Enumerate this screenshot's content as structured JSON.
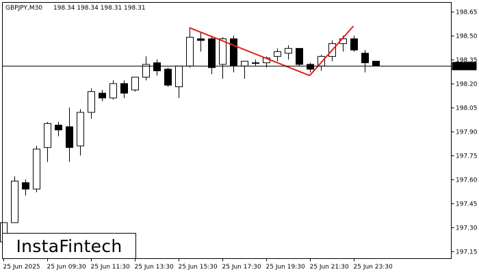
{
  "header": {
    "symbol_label": "GBPJPY,M30",
    "ohlc_label": "198.34 198.34 198.31 198.31"
  },
  "logo": {
    "text": "InstaFintech"
  },
  "colors": {
    "bull": "#ffffff",
    "bear": "#000000",
    "pattern": "#e0201c",
    "grid": "#000000"
  },
  "chart_data": {
    "type": "candlestick",
    "title": "",
    "ylim": [
      197.1,
      198.7
    ],
    "y_ticks": [
      198.65,
      198.5,
      198.35,
      198.2,
      198.05,
      197.9,
      197.75,
      197.6,
      197.45,
      197.3,
      197.15
    ],
    "x_ticks": [
      "25 Jun 2025",
      "25 Jun 09:30",
      "25 Jun 11:30",
      "25 Jun 13:30",
      "25 Jun 15:30",
      "25 Jun 17:30",
      "25 Jun 19:30",
      "25 Jun 21:30",
      "25 Jun 23:30"
    ],
    "current_price": 198.31,
    "current_price_label": "198.31",
    "candles": [
      {
        "o": 197.21,
        "h": 197.33,
        "l": 197.15,
        "c": 197.33
      },
      {
        "o": 197.33,
        "h": 197.62,
        "l": 197.33,
        "c": 197.59
      },
      {
        "o": 197.58,
        "h": 197.6,
        "l": 197.5,
        "c": 197.54
      },
      {
        "o": 197.54,
        "h": 197.81,
        "l": 197.52,
        "c": 197.79
      },
      {
        "o": 197.8,
        "h": 197.96,
        "l": 197.71,
        "c": 197.95
      },
      {
        "o": 197.94,
        "h": 197.96,
        "l": 197.87,
        "c": 197.91
      },
      {
        "o": 197.93,
        "h": 198.05,
        "l": 197.71,
        "c": 197.8
      },
      {
        "o": 197.81,
        "h": 198.04,
        "l": 197.75,
        "c": 198.02
      },
      {
        "o": 198.02,
        "h": 198.17,
        "l": 197.98,
        "c": 198.15
      },
      {
        "o": 198.14,
        "h": 198.16,
        "l": 198.09,
        "c": 198.11
      },
      {
        "o": 198.11,
        "h": 198.22,
        "l": 198.1,
        "c": 198.2
      },
      {
        "o": 198.2,
        "h": 198.22,
        "l": 198.11,
        "c": 198.14
      },
      {
        "o": 198.16,
        "h": 198.24,
        "l": 198.15,
        "c": 198.24
      },
      {
        "o": 198.24,
        "h": 198.37,
        "l": 198.22,
        "c": 198.32
      },
      {
        "o": 198.33,
        "h": 198.35,
        "l": 198.25,
        "c": 198.28
      },
      {
        "o": 198.29,
        "h": 198.3,
        "l": 198.18,
        "c": 198.19
      },
      {
        "o": 198.18,
        "h": 198.31,
        "l": 198.11,
        "c": 198.31
      },
      {
        "o": 198.31,
        "h": 198.55,
        "l": 198.3,
        "c": 198.49
      },
      {
        "o": 198.48,
        "h": 198.52,
        "l": 198.4,
        "c": 198.47
      },
      {
        "o": 198.48,
        "h": 198.5,
        "l": 198.26,
        "c": 198.3
      },
      {
        "o": 198.32,
        "h": 198.49,
        "l": 198.23,
        "c": 198.48
      },
      {
        "o": 198.48,
        "h": 198.5,
        "l": 198.27,
        "c": 198.31
      },
      {
        "o": 198.31,
        "h": 198.34,
        "l": 198.23,
        "c": 198.34
      },
      {
        "o": 198.33,
        "h": 198.35,
        "l": 198.31,
        "c": 198.33
      },
      {
        "o": 198.33,
        "h": 198.37,
        "l": 198.3,
        "c": 198.36
      },
      {
        "o": 198.37,
        "h": 198.42,
        "l": 198.34,
        "c": 198.4
      },
      {
        "o": 198.39,
        "h": 198.44,
        "l": 198.35,
        "c": 198.42
      },
      {
        "o": 198.42,
        "h": 198.42,
        "l": 198.31,
        "c": 198.32
      },
      {
        "o": 198.32,
        "h": 198.33,
        "l": 198.27,
        "c": 198.29
      },
      {
        "o": 198.31,
        "h": 198.38,
        "l": 198.28,
        "c": 198.37
      },
      {
        "o": 198.37,
        "h": 198.47,
        "l": 198.34,
        "c": 198.45
      },
      {
        "o": 198.45,
        "h": 198.5,
        "l": 198.4,
        "c": 198.48
      },
      {
        "o": 198.48,
        "h": 198.5,
        "l": 198.4,
        "c": 198.41
      },
      {
        "o": 198.39,
        "h": 198.41,
        "l": 198.27,
        "c": 198.33
      },
      {
        "o": 198.34,
        "h": 198.34,
        "l": 198.31,
        "c": 198.31
      }
    ],
    "pattern_lines": [
      {
        "from": {
          "bar": 17,
          "price": 198.55
        },
        "to": {
          "bar": 28,
          "price": 198.25
        }
      },
      {
        "from": {
          "bar": 28,
          "price": 198.25
        },
        "to": {
          "bar": 32,
          "price": 198.56
        }
      }
    ]
  }
}
